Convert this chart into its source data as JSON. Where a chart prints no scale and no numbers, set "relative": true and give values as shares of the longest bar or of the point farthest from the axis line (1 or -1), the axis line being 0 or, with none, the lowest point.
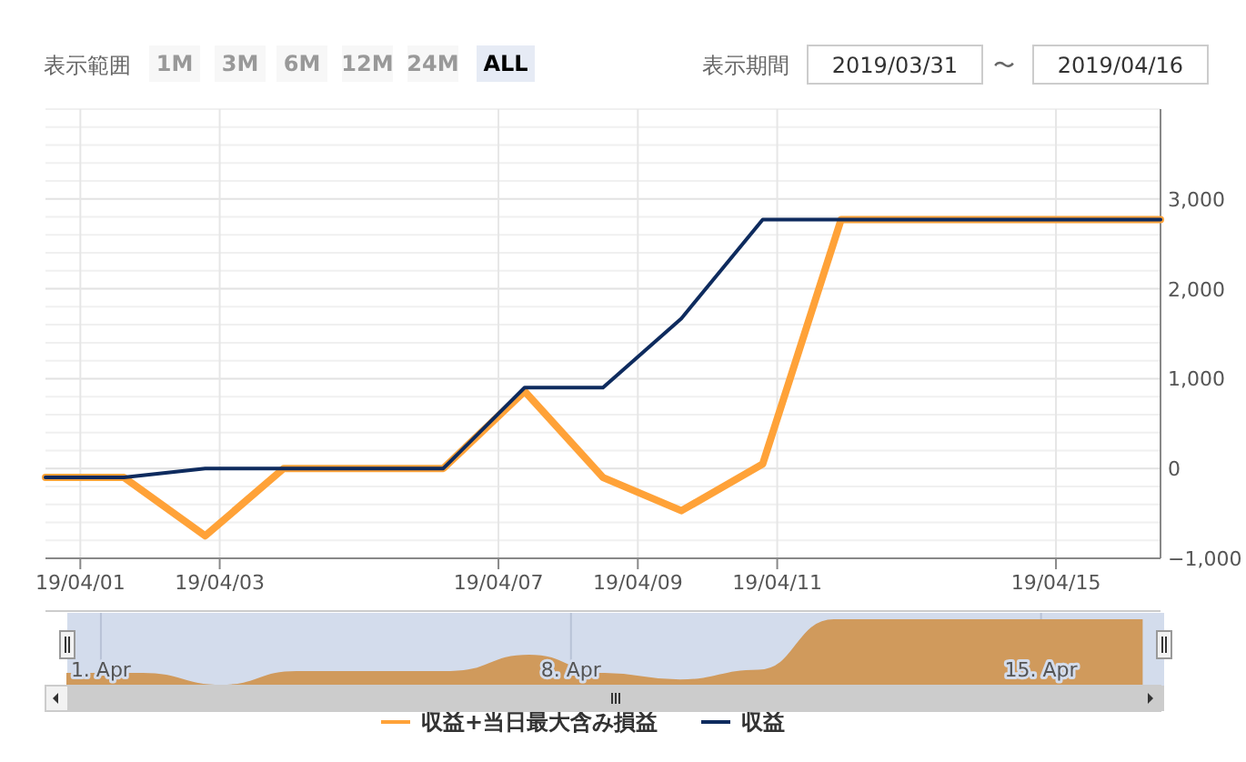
{
  "chart_data": [
    {
      "type": "line",
      "x": [
        "2019-03-31T12:00",
        "2019-04-01T15:00",
        "2019-04-02T19:00",
        "2019-04-03T22:00",
        "2019-04-06T05:00",
        "2019-04-07T09:00",
        "2019-04-08T12:00",
        "2019-04-09T15:00",
        "2019-04-10T19:00",
        "2019-04-11T22:00",
        "2019-04-16T12:00"
      ],
      "series": [
        {
          "name": "収益+当日最大含み損益",
          "color": "#ffa238",
          "values": [
            -100,
            -100,
            -750,
            0,
            0,
            860,
            -100,
            -470,
            50,
            2770,
            2770
          ]
        },
        {
          "name": "収益",
          "color": "#0e2b5e",
          "values": [
            -100,
            -100,
            0,
            0,
            0,
            900,
            900,
            1670,
            2770,
            2770,
            2770
          ]
        }
      ],
      "xlim": [
        "2019-03-31T12:00",
        "2019-04-16T12:00"
      ],
      "xticks": [
        {
          "value": "2019-04-01",
          "label": "19/04/01"
        },
        {
          "value": "2019-04-03",
          "label": "19/04/03"
        },
        {
          "value": "2019-04-07",
          "label": "19/04/07"
        },
        {
          "value": "2019-04-09",
          "label": "19/04/09"
        },
        {
          "value": "2019-04-11",
          "label": "19/04/11"
        },
        {
          "value": "2019-04-15",
          "label": "19/04/15"
        }
      ],
      "ylim": [
        -1000,
        4000
      ],
      "yticks": [
        {
          "value": -1000,
          "label": "−1,000"
        },
        {
          "value": -800,
          "label": null
        },
        {
          "value": -600,
          "label": null
        },
        {
          "value": -400,
          "label": null
        },
        {
          "value": -200,
          "label": null
        },
        {
          "value": 0,
          "label": "0"
        },
        {
          "value": 200,
          "label": null
        },
        {
          "value": 400,
          "label": null
        },
        {
          "value": 600,
          "label": null
        },
        {
          "value": 800,
          "label": null
        },
        {
          "value": 1000,
          "label": "1,000"
        },
        {
          "value": 1200,
          "label": null
        },
        {
          "value": 1400,
          "label": null
        },
        {
          "value": 1600,
          "label": null
        },
        {
          "value": 1800,
          "label": null
        },
        {
          "value": 2000,
          "label": "2,000"
        },
        {
          "value": 2200,
          "label": null
        },
        {
          "value": 2400,
          "label": null
        },
        {
          "value": 2600,
          "label": null
        },
        {
          "value": 2800,
          "label": null
        },
        {
          "value": 3000,
          "label": "3,000"
        },
        {
          "value": 3200,
          "label": null
        },
        {
          "value": 3400,
          "label": null
        },
        {
          "value": 3600,
          "label": null
        },
        {
          "value": 3800,
          "label": null
        },
        {
          "value": 4000,
          "label": null
        }
      ],
      "grid": true,
      "legend": "bottom",
      "marker": "none",
      "line_style": "solid",
      "annotations": [
        "表示範囲",
        "1M",
        "3M",
        "6M",
        "12M",
        "24M",
        "ALL",
        "表示期間",
        "2019/03/31",
        "〜",
        "2019/04/16"
      ]
    },
    {
      "type": "area",
      "relative": true,
      "tick_labels": "x",
      "grid": "x",
      "color": "#d09a5c",
      "x": [
        "2019-03-31T12:00",
        "2019-04-01T15:00",
        "2019-04-02T19:00",
        "2019-04-03T22:00",
        "2019-04-06T05:00",
        "2019-04-07T09:00",
        "2019-04-08T12:00",
        "2019-04-09T15:00",
        "2019-04-10T19:00",
        "2019-04-11T22:00",
        "2019-04-16T12:00"
      ],
      "values": [
        0.18,
        0.18,
        0,
        0.21,
        0.21,
        0.46,
        0.18,
        0.08,
        0.23,
        1,
        1
      ],
      "xlim": [
        "2019-03-31T12:00",
        "2019-04-16T20:00"
      ],
      "xticks": [
        {
          "value": "2019-04-01",
          "label": "1. Apr"
        },
        {
          "value": "2019-04-08",
          "label": "8. Apr"
        },
        {
          "value": "2019-04-15",
          "label": "15. Apr"
        }
      ]
    }
  ]
}
